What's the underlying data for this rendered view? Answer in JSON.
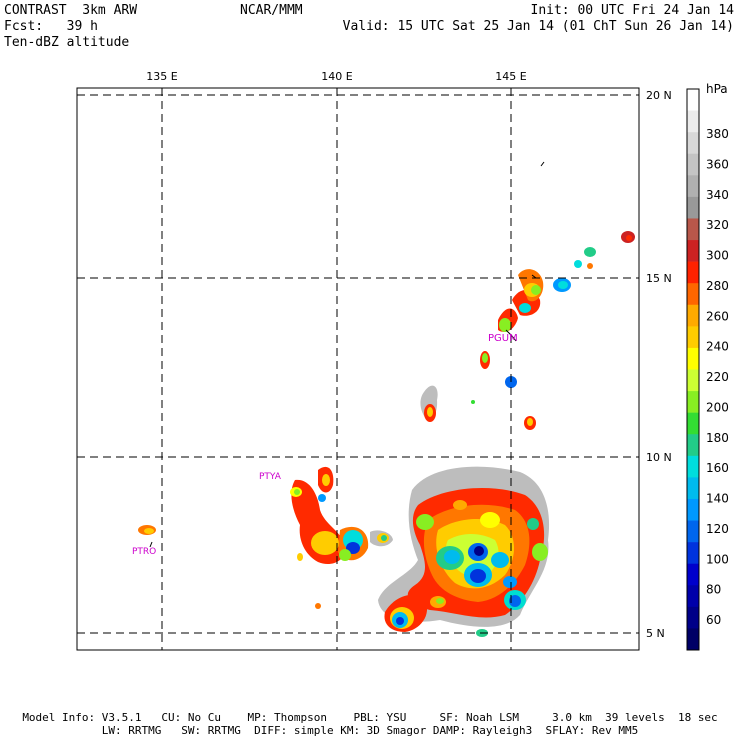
{
  "header": {
    "left_line1": "CONTRAST  3km ARW",
    "left_line2": "Fcst:   39 h",
    "left_line3": "Ten-dBZ altitude",
    "center_line1": "NCAR/MMM",
    "right_line1": "Init: 00 UTC Fri 24 Jan 14",
    "right_line2": "Valid: 15 UTC Sat 25 Jan 14 (01 ChT Sun 26 Jan 14)"
  },
  "map": {
    "lon_labels": [
      "135 E",
      "140 E",
      "145 E"
    ],
    "lat_labels": [
      "20 N",
      "15 N",
      "10 N",
      "5 N"
    ],
    "stations": [
      "PGUM",
      "PTYA",
      "PTRO"
    ]
  },
  "colorbar": {
    "unit": "hPa",
    "labels": [
      "380",
      "360",
      "340",
      "320",
      "300",
      "280",
      "260",
      "240",
      "220",
      "200",
      "180",
      "160",
      "140",
      "120",
      "100",
      "80",
      "60"
    ],
    "colors": [
      "#ffffff",
      "#ececec",
      "#d8d8d8",
      "#c4c4c4",
      "#b0b0b0",
      "#999999",
      "#b8574a",
      "#cc2222",
      "#ff2200",
      "#ff6600",
      "#ffaa00",
      "#ffcc00",
      "#ffff00",
      "#ccff33",
      "#88ee22",
      "#33dd33",
      "#22cc88",
      "#00dddd",
      "#00bbee",
      "#0099ff",
      "#0066ee",
      "#0033dd",
      "#0000cc",
      "#0000aa",
      "#000088",
      "#000066"
    ]
  },
  "footer": {
    "line1": "Model Info: V3.5.1   CU: No Cu    MP: Thompson    PBL: YSU     SF: Noah LSM     3.0 km  39 levels  18 sec",
    "line2": "LW: RRTMG   SW: RRTMG  DIFF: simple KM: 3D Smagor DAMP: Rayleigh3  SFLAY: Rev MM5"
  }
}
